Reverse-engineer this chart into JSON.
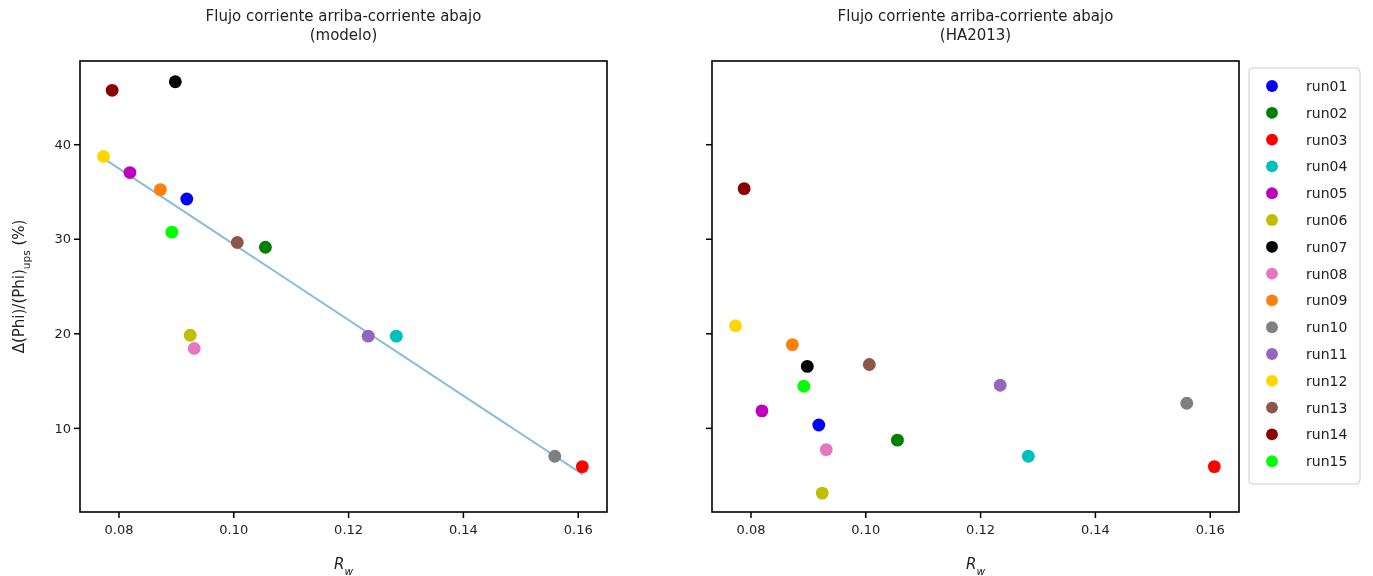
{
  "chart_data": [
    {
      "type": "scatter",
      "title": "Flujo corriente arriba-corriente abajo\n(modelo)",
      "xlabel": "R$_{w}$",
      "ylabel": "Δ(Phi)/(Phi)$_{ups}$ (%)",
      "xlim": [
        0.0733,
        0.1651
      ],
      "ylim": [
        1.1,
        48.8
      ],
      "xticks": [
        0.08,
        {
          "value": 0.1,
          "label": "0.10"
        },
        0.12,
        0.14,
        0.16
      ],
      "yticks": [
        10,
        20,
        30,
        40
      ],
      "marker": "circle",
      "legend": false,
      "series": [
        {
          "color": "#0000ff",
          "x": [
            0.0919
          ],
          "values": [
            34.2
          ]
        },
        {
          "color": "#008000",
          "x": [
            0.1056
          ],
          "values": [
            29.1
          ]
        },
        {
          "color": "#ff0000",
          "x": [
            0.1608
          ],
          "values": [
            5.9
          ]
        },
        {
          "color": "#00bfbf",
          "x": [
            0.1284
          ],
          "values": [
            19.7
          ]
        },
        {
          "color": "#bf00bf",
          "x": [
            0.082
          ],
          "values": [
            37.0
          ]
        },
        {
          "color": "#bfbf00",
          "x": [
            0.0925
          ],
          "values": [
            19.8
          ]
        },
        {
          "color": "#000000",
          "x": [
            0.0899
          ],
          "values": [
            46.6
          ]
        },
        {
          "color": "#e377c2",
          "x": [
            0.0932
          ],
          "values": [
            18.4
          ]
        },
        {
          "color": "#ff7f0e",
          "x": [
            0.0873
          ],
          "values": [
            35.2
          ]
        },
        {
          "color": "#7f7f7f",
          "x": [
            0.156
          ],
          "values": [
            7.0
          ]
        },
        {
          "color": "#9467bd",
          "x": [
            0.1235
          ],
          "values": [
            19.7
          ]
        },
        {
          "color": "#ffd700",
          "x": [
            0.0774
          ],
          "values": [
            38.7
          ]
        },
        {
          "color": "#8c564b",
          "x": [
            0.1007
          ],
          "values": [
            29.6
          ]
        },
        {
          "color": "#8b0000",
          "x": [
            0.0789
          ],
          "values": [
            45.7
          ]
        },
        {
          "color": "#00ff00",
          "x": [
            0.0893
          ],
          "values": [
            30.7
          ]
        },
        {
          "type": "line",
          "marker": "none",
          "color": "#88bcdf",
          "x": [
            0.0774,
            0.1608
          ],
          "values": [
            38.5,
            5.1
          ]
        }
      ]
    },
    {
      "type": "scatter",
      "title": "Flujo corriente arriba-corriente abajo\n(HA2013)",
      "xlabel": "R$_{w}$",
      "xlim": [
        0.0733,
        0.1651
      ],
      "ylim": [
        1.1,
        48.8
      ],
      "xticks": [
        0.08,
        {
          "value": 0.1,
          "label": "0.10"
        },
        0.12,
        0.14,
        0.16
      ],
      "yticks": [
        10,
        20,
        30,
        40
      ],
      "tick_labels": "x",
      "marker": "circle",
      "legend": "right",
      "series": [
        {
          "name": "run01",
          "color": "#0000ff",
          "x": [
            0.0919
          ],
          "values": [
            10.3
          ]
        },
        {
          "name": "run02",
          "color": "#008000",
          "x": [
            0.1056
          ],
          "values": [
            8.7
          ]
        },
        {
          "name": "run03",
          "color": "#ff0000",
          "x": [
            0.1608
          ],
          "values": [
            5.9
          ]
        },
        {
          "name": "run04",
          "color": "#00bfbf",
          "x": [
            0.1284
          ],
          "values": [
            7.0
          ]
        },
        {
          "name": "run05",
          "color": "#bf00bf",
          "x": [
            0.082
          ],
          "values": [
            11.8
          ]
        },
        {
          "name": "run06",
          "color": "#bfbf00",
          "x": [
            0.0925
          ],
          "values": [
            3.1
          ]
        },
        {
          "name": "run07",
          "color": "#000000",
          "x": [
            0.0899
          ],
          "values": [
            16.5
          ]
        },
        {
          "name": "run08",
          "color": "#e377c2",
          "x": [
            0.0932
          ],
          "values": [
            7.7
          ]
        },
        {
          "name": "run09",
          "color": "#ff7f0e",
          "x": [
            0.0873
          ],
          "values": [
            18.8
          ]
        },
        {
          "name": "run10",
          "color": "#7f7f7f",
          "x": [
            0.156
          ],
          "values": [
            12.6
          ]
        },
        {
          "name": "run11",
          "color": "#9467bd",
          "x": [
            0.1235
          ],
          "values": [
            14.5
          ]
        },
        {
          "name": "run12",
          "color": "#ffd700",
          "x": [
            0.0774
          ],
          "values": [
            20.8
          ]
        },
        {
          "name": "run13",
          "color": "#8c564b",
          "x": [
            0.1007
          ],
          "values": [
            16.7
          ]
        },
        {
          "name": "run14",
          "color": "#8b0000",
          "x": [
            0.0789
          ],
          "values": [
            35.3
          ]
        },
        {
          "name": "run15",
          "color": "#00ff00",
          "x": [
            0.0893
          ],
          "values": [
            14.4
          ]
        }
      ]
    }
  ]
}
